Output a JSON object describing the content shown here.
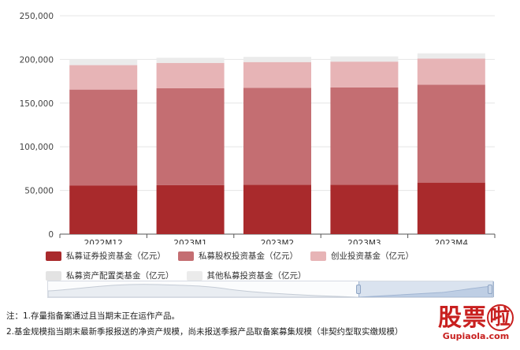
{
  "chart_data": {
    "type": "bar",
    "stacked": true,
    "categories": [
      "2022M12",
      "2023M1",
      "2023M2",
      "2023M3",
      "2023M4"
    ],
    "ylim": [
      0,
      250000
    ],
    "yticks": [
      0,
      50000,
      100000,
      150000,
      200000,
      250000
    ],
    "ytick_labels": [
      "0",
      "50,000",
      "100,000",
      "150,000",
      "200,000",
      "250,000"
    ],
    "grid": true,
    "legend_position": "bottom",
    "series": [
      {
        "name": "私募证券投资基金（亿元）",
        "color": "#a92a2c",
        "values": [
          55500,
          56000,
          56500,
          56500,
          59000
        ]
      },
      {
        "name": "私募股权投资基金（亿元）",
        "color": "#c46e72",
        "values": [
          110000,
          111000,
          111000,
          111500,
          112000
        ]
      },
      {
        "name": "创业投资基金（亿元）",
        "color": "#e7b4b6",
        "values": [
          28000,
          29000,
          29500,
          29500,
          30000
        ]
      },
      {
        "name": "私募资产配置类基金（亿元）",
        "color": "#e3e3e3",
        "values": [
          400,
          400,
          450,
          450,
          500
        ]
      },
      {
        "name": "其他私募投资基金（亿元）",
        "color": "#ebebeb",
        "values": [
          5500,
          5500,
          5500,
          5500,
          5500
        ]
      }
    ]
  },
  "notes": {
    "line1": "注：1.存量指备案通过且当期末正在运作产品。",
    "line2": "2.基金规模指当期末最新季报报送的净资产规模，尚未报送季报产品取备案募集规模（非契约型取实缴规模）"
  },
  "watermark": {
    "logo_part1": "股票",
    "logo_part2": "啦",
    "url": "Gupiaola.com"
  }
}
